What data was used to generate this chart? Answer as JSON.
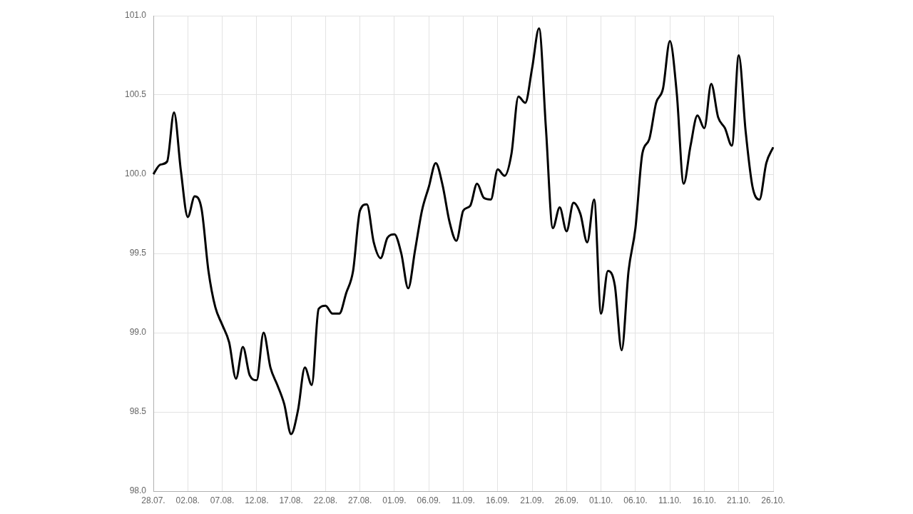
{
  "chart_data": {
    "type": "line",
    "categories": [
      "28.07.",
      null,
      null,
      null,
      null,
      "02.08.",
      null,
      null,
      null,
      null,
      "07.08.",
      null,
      null,
      null,
      null,
      "12.08.",
      null,
      null,
      null,
      null,
      "17.08.",
      null,
      null,
      null,
      null,
      "22.08.",
      null,
      null,
      null,
      null,
      "27.08.",
      null,
      null,
      null,
      null,
      "01.09.",
      null,
      null,
      null,
      null,
      "06.09.",
      null,
      null,
      null,
      null,
      "11.09.",
      null,
      null,
      null,
      null,
      "16.09.",
      null,
      null,
      null,
      null,
      "21.09.",
      null,
      null,
      null,
      null,
      "26.09.",
      null,
      null,
      null,
      null,
      "01.10.",
      null,
      null,
      null,
      null,
      "06.10.",
      null,
      null,
      null,
      null,
      "11.10.",
      null,
      null,
      null,
      null,
      "16.10.",
      null,
      null,
      null,
      null,
      "21.10.",
      null,
      null,
      null,
      null,
      "26.10."
    ],
    "series": [
      {
        "color": "#000000",
        "values": [
          100.0,
          100.06,
          100.08,
          100.39,
          100.02,
          99.73,
          99.86,
          99.78,
          99.39,
          99.16,
          99.05,
          98.94,
          98.71,
          98.91,
          98.73,
          98.7,
          99.0,
          98.78,
          98.67,
          98.55,
          98.36,
          98.51,
          98.78,
          98.67,
          99.15,
          99.17,
          99.12,
          99.12,
          99.25,
          99.39,
          99.77,
          99.81,
          99.57,
          99.47,
          99.6,
          99.62,
          99.5,
          99.28,
          99.52,
          99.77,
          99.92,
          100.07,
          99.93,
          99.7,
          99.58,
          99.77,
          99.8,
          99.94,
          99.85,
          99.84,
          100.03,
          99.99,
          100.13,
          100.49,
          100.45,
          100.67,
          100.92,
          100.29,
          99.66,
          99.79,
          99.64,
          99.82,
          99.75,
          99.57,
          99.84,
          99.12,
          99.39,
          99.3,
          98.89,
          99.39,
          99.66,
          100.13,
          100.22,
          100.45,
          100.54,
          100.84,
          100.51,
          99.94,
          100.18,
          100.37,
          100.29,
          100.57,
          100.36,
          100.29,
          100.18,
          100.75,
          100.27,
          99.92,
          99.84,
          100.07,
          100.17
        ]
      }
    ],
    "ylim": [
      98.0,
      101.0
    ],
    "yticks": [
      {
        "value": 98,
        "label": "98.0"
      },
      {
        "value": 98.5,
        "label": "98.5"
      },
      {
        "value": 99,
        "label": "99.0"
      },
      {
        "value": 99.5,
        "label": "99.5"
      },
      {
        "value": 100,
        "label": "100.0"
      },
      {
        "value": 100.5,
        "label": "100.5"
      },
      {
        "value": 101,
        "label": "101.0"
      }
    ],
    "grid": true,
    "legend": false,
    "marker": "none",
    "line_style": "solid"
  }
}
